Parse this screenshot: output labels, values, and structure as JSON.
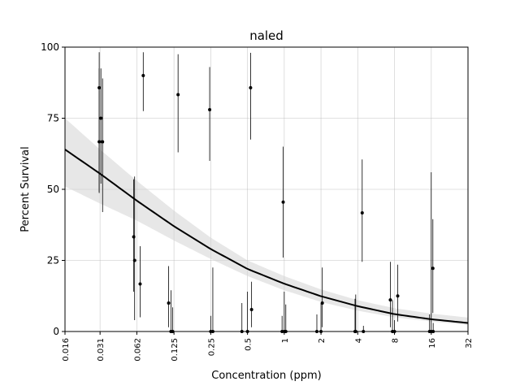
{
  "chart_data": {
    "type": "scatter",
    "title": "naled",
    "xlabel": "Concentration (ppm)",
    "ylabel": "Percent Survival",
    "x_scale": "log2",
    "xlim": [
      0.016,
      32
    ],
    "ylim": [
      0,
      100
    ],
    "x_ticks": [
      0.016,
      0.031,
      0.062,
      0.125,
      0.25,
      0.5,
      1,
      2,
      4,
      8,
      16,
      32
    ],
    "x_tick_labels": [
      "0.016",
      "0.031",
      "0.062",
      "0.125",
      "0.25",
      "0.5",
      "1",
      "2",
      "4",
      "8",
      "16",
      "32"
    ],
    "y_ticks": [
      0,
      25,
      50,
      75,
      100
    ],
    "y_tick_labels": [
      "0",
      "25",
      "50",
      "75",
      "100"
    ],
    "grid": true,
    "observations": [
      {
        "x": 0.0305,
        "y": 85.7,
        "low": 48.7,
        "high": 98.2
      },
      {
        "x": 0.0305,
        "y": 66.7,
        "low": 49.0,
        "high": 92.5
      },
      {
        "x": 0.0315,
        "y": 75.0,
        "low": 52.0,
        "high": 92.5
      },
      {
        "x": 0.0325,
        "y": 66.7,
        "low": 42.0,
        "high": 89.0
      },
      {
        "x": 0.0585,
        "y": 33.3,
        "low": 14.0,
        "high": 53.5
      },
      {
        "x": 0.0595,
        "y": 25.0,
        "low": 4.0,
        "high": 54.5
      },
      {
        "x": 0.066,
        "y": 16.7,
        "low": 5.0,
        "high": 30.0
      },
      {
        "x": 0.07,
        "y": 90.0,
        "low": 77.5,
        "high": 98.2
      },
      {
        "x": 0.113,
        "y": 10.0,
        "low": 1.5,
        "high": 23.0
      },
      {
        "x": 0.118,
        "y": 0.0,
        "low": 0.0,
        "high": 14.5
      },
      {
        "x": 0.122,
        "y": 0.0,
        "low": 0.0,
        "high": 8.5
      },
      {
        "x": 0.135,
        "y": 83.3,
        "low": 63.0,
        "high": 97.5
      },
      {
        "x": 0.245,
        "y": 78.0,
        "low": 60.0,
        "high": 93.0
      },
      {
        "x": 0.25,
        "y": 0.0,
        "low": 0.0,
        "high": 5.5
      },
      {
        "x": 0.26,
        "y": 0.0,
        "low": 0.0,
        "high": 22.5
      },
      {
        "x": 0.45,
        "y": 0.0,
        "low": 0.0,
        "high": 10.0
      },
      {
        "x": 0.5,
        "y": 0.0,
        "low": 0.0,
        "high": 14.0
      },
      {
        "x": 0.53,
        "y": 85.7,
        "low": 67.5,
        "high": 98.0
      },
      {
        "x": 0.54,
        "y": 7.7,
        "low": 1.5,
        "high": 17.5
      },
      {
        "x": 0.96,
        "y": 0.0,
        "low": 0.0,
        "high": 5.5
      },
      {
        "x": 0.98,
        "y": 45.5,
        "low": 26.0,
        "high": 65.0
      },
      {
        "x": 1.0,
        "y": 0.0,
        "low": 0.0,
        "high": 14.0
      },
      {
        "x": 1.03,
        "y": 0.0,
        "low": 0.0,
        "high": 9.5
      },
      {
        "x": 1.85,
        "y": 0.0,
        "low": 0.0,
        "high": 6.0
      },
      {
        "x": 2.0,
        "y": 0.0,
        "low": 0.0,
        "high": 10.0
      },
      {
        "x": 2.05,
        "y": 10.0,
        "low": 1.5,
        "high": 22.5
      },
      {
        "x": 3.8,
        "y": 0.0,
        "low": 0.0,
        "high": 11.5
      },
      {
        "x": 3.85,
        "y": 0.0,
        "low": 0.0,
        "high": 13.0
      },
      {
        "x": 4.35,
        "y": 41.7,
        "low": 24.5,
        "high": 60.5
      },
      {
        "x": 4.45,
        "y": 0.0,
        "low": 0.0,
        "high": 2.0
      },
      {
        "x": 7.4,
        "y": 11.1,
        "low": 1.5,
        "high": 24.5
      },
      {
        "x": 7.7,
        "y": 0.0,
        "low": 0.0,
        "high": 11.0
      },
      {
        "x": 8.0,
        "y": 0.0,
        "low": 0.0,
        "high": 4.0
      },
      {
        "x": 8.5,
        "y": 12.5,
        "low": 3.5,
        "high": 23.5
      },
      {
        "x": 15.5,
        "y": 0.0,
        "low": 0.0,
        "high": 6.0
      },
      {
        "x": 16.0,
        "y": 0.0,
        "low": 0.0,
        "high": 56.0
      },
      {
        "x": 16.5,
        "y": 22.2,
        "low": 6.5,
        "high": 39.5
      },
      {
        "x": 16.6,
        "y": 0.0,
        "low": 0.0,
        "high": 3.0
      }
    ],
    "fit_curve": {
      "x": [
        0.016,
        0.031,
        0.062,
        0.125,
        0.25,
        0.5,
        1,
        2,
        4,
        8,
        16,
        32
      ],
      "y": [
        64.0,
        55.5,
        46.0,
        37.0,
        29.0,
        22.0,
        16.8,
        12.4,
        8.9,
        6.1,
        4.3,
        3.0
      ],
      "lower": [
        51.0,
        45.0,
        39.0,
        32.0,
        25.5,
        19.5,
        14.5,
        10.4,
        7.3,
        5.0,
        3.5,
        2.3
      ],
      "upper": [
        75.0,
        64.0,
        53.0,
        42.5,
        33.0,
        25.0,
        19.5,
        14.8,
        11.0,
        8.2,
        6.3,
        4.9
      ]
    },
    "colors": {
      "points": "#000000",
      "fit_line": "#000000",
      "band": "#d3d3d3",
      "grid": "#b0b0b0"
    }
  }
}
